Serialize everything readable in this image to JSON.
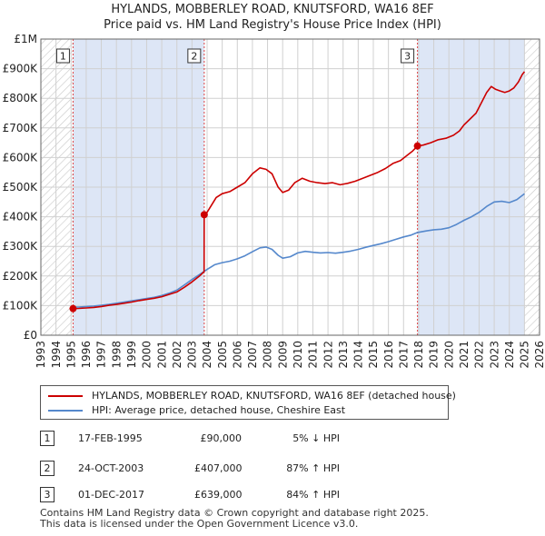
{
  "title": {
    "line1": "HYLANDS, MOBBERLEY ROAD, KNUTSFORD, WA16 8EF",
    "line2": "Price paid vs. HM Land Registry's House Price Index (HPI)"
  },
  "colors": {
    "property": "#cc0000",
    "hpi": "#5588cc",
    "shade": "#dde6f6",
    "grid": "#d0d0d0"
  },
  "legend": {
    "property_label": "HYLANDS, MOBBERLEY ROAD, KNUTSFORD, WA16 8EF (detached house)",
    "hpi_label": "HPI: Average price, detached house, Cheshire East"
  },
  "sales": [
    {
      "num": "1",
      "date": "17-FEB-1995",
      "price": "£90,000",
      "hpi": "5% ↓ HPI"
    },
    {
      "num": "2",
      "date": "24-OCT-2003",
      "price": "£407,000",
      "hpi": "87% ↑ HPI"
    },
    {
      "num": "3",
      "date": "01-DEC-2017",
      "price": "£639,000",
      "hpi": "84% ↑ HPI"
    }
  ],
  "footer": {
    "line1": "Contains HM Land Registry data © Crown copyright and database right 2025.",
    "line2": "This data is licensed under the Open Government Licence v3.0."
  },
  "chart_data": {
    "type": "line",
    "title": "HYLANDS, MOBBERLEY ROAD, KNUTSFORD, WA16 8EF",
    "subtitle": "Price paid vs. HM Land Registry's House Price Index (HPI)",
    "xlabel": "",
    "ylabel": "",
    "xlim": [
      1993,
      2026
    ],
    "ylim": [
      0,
      1000000
    ],
    "x_ticks": [
      1993,
      1994,
      1995,
      1996,
      1997,
      1998,
      1999,
      2000,
      2001,
      2002,
      2003,
      2004,
      2005,
      2006,
      2007,
      2008,
      2009,
      2010,
      2011,
      2012,
      2013,
      2014,
      2015,
      2016,
      2017,
      2018,
      2019,
      2020,
      2021,
      2022,
      2023,
      2024,
      2025,
      2026
    ],
    "y_ticks": [
      {
        "value": 0,
        "label": "£0"
      },
      {
        "value": 100000,
        "label": "£100K"
      },
      {
        "value": 200000,
        "label": "£200K"
      },
      {
        "value": 300000,
        "label": "£300K"
      },
      {
        "value": 400000,
        "label": "£400K"
      },
      {
        "value": 500000,
        "label": "£500K"
      },
      {
        "value": 600000,
        "label": "£600K"
      },
      {
        "value": 700000,
        "label": "£700K"
      },
      {
        "value": 800000,
        "label": "£800K"
      },
      {
        "value": 900000,
        "label": "£900K"
      },
      {
        "value": 1000000,
        "label": "£1M"
      }
    ],
    "grid": true,
    "shaded_regions": [
      [
        1995.13,
        2003.81
      ],
      [
        2017.92,
        2025.0
      ]
    ],
    "hatched_regions": [
      [
        1993,
        1995.13
      ],
      [
        2025.0,
        2026
      ]
    ],
    "series": [
      {
        "name": "HYLANDS, MOBBERLEY ROAD, KNUTSFORD, WA16 8EF (detached house)",
        "color": "#cc0000",
        "points": [
          [
            1995.13,
            90000
          ],
          [
            1995.5,
            90500
          ],
          [
            1996.0,
            92000
          ],
          [
            1996.5,
            94000
          ],
          [
            1997.0,
            97000
          ],
          [
            1997.5,
            101000
          ],
          [
            1998.0,
            104000
          ],
          [
            1998.5,
            108000
          ],
          [
            1999.0,
            112000
          ],
          [
            1999.5,
            117000
          ],
          [
            2000.0,
            121000
          ],
          [
            2000.5,
            125000
          ],
          [
            2001.0,
            130000
          ],
          [
            2001.5,
            138000
          ],
          [
            2002.0,
            146000
          ],
          [
            2002.5,
            162000
          ],
          [
            2003.0,
            180000
          ],
          [
            2003.5,
            200000
          ],
          [
            2003.8,
            215000
          ],
          [
            2003.81,
            407000
          ],
          [
            2004.0,
            415000
          ],
          [
            2004.3,
            440000
          ],
          [
            2004.6,
            465000
          ],
          [
            2005.0,
            478000
          ],
          [
            2005.5,
            485000
          ],
          [
            2006.0,
            500000
          ],
          [
            2006.5,
            515000
          ],
          [
            2007.0,
            545000
          ],
          [
            2007.5,
            565000
          ],
          [
            2007.9,
            560000
          ],
          [
            2008.3,
            545000
          ],
          [
            2008.7,
            500000
          ],
          [
            2009.0,
            482000
          ],
          [
            2009.4,
            490000
          ],
          [
            2009.8,
            515000
          ],
          [
            2010.3,
            530000
          ],
          [
            2010.8,
            520000
          ],
          [
            2011.3,
            515000
          ],
          [
            2011.8,
            512000
          ],
          [
            2012.3,
            515000
          ],
          [
            2012.8,
            508000
          ],
          [
            2013.3,
            513000
          ],
          [
            2013.8,
            520000
          ],
          [
            2014.3,
            530000
          ],
          [
            2014.8,
            540000
          ],
          [
            2015.3,
            550000
          ],
          [
            2015.8,
            563000
          ],
          [
            2016.3,
            580000
          ],
          [
            2016.8,
            590000
          ],
          [
            2017.3,
            610000
          ],
          [
            2017.6,
            622000
          ],
          [
            2017.92,
            639000
          ],
          [
            2018.3,
            642000
          ],
          [
            2018.8,
            650000
          ],
          [
            2019.3,
            660000
          ],
          [
            2019.8,
            665000
          ],
          [
            2020.3,
            675000
          ],
          [
            2020.7,
            690000
          ],
          [
            2021.0,
            710000
          ],
          [
            2021.4,
            730000
          ],
          [
            2021.8,
            750000
          ],
          [
            2022.2,
            790000
          ],
          [
            2022.5,
            820000
          ],
          [
            2022.8,
            840000
          ],
          [
            2023.1,
            830000
          ],
          [
            2023.4,
            825000
          ],
          [
            2023.7,
            820000
          ],
          [
            2024.0,
            825000
          ],
          [
            2024.3,
            835000
          ],
          [
            2024.6,
            855000
          ],
          [
            2024.85,
            880000
          ],
          [
            2025.0,
            890000
          ]
        ]
      },
      {
        "name": "HPI: Average price, detached house, Cheshire East",
        "color": "#5588cc",
        "points": [
          [
            1995.0,
            95000
          ],
          [
            1995.5,
            95000
          ],
          [
            1996.0,
            97000
          ],
          [
            1996.5,
            98500
          ],
          [
            1997.0,
            101000
          ],
          [
            1997.5,
            104000
          ],
          [
            1998.0,
            108000
          ],
          [
            1998.5,
            112000
          ],
          [
            1999.0,
            116000
          ],
          [
            1999.5,
            120000
          ],
          [
            2000.0,
            124000
          ],
          [
            2000.5,
            128000
          ],
          [
            2001.0,
            134000
          ],
          [
            2001.5,
            142000
          ],
          [
            2002.0,
            152000
          ],
          [
            2002.5,
            170000
          ],
          [
            2003.0,
            188000
          ],
          [
            2003.5,
            205000
          ],
          [
            2004.0,
            222000
          ],
          [
            2004.5,
            238000
          ],
          [
            2005.0,
            245000
          ],
          [
            2005.5,
            250000
          ],
          [
            2006.0,
            258000
          ],
          [
            2006.5,
            268000
          ],
          [
            2007.0,
            282000
          ],
          [
            2007.5,
            295000
          ],
          [
            2007.9,
            298000
          ],
          [
            2008.3,
            290000
          ],
          [
            2008.7,
            270000
          ],
          [
            2009.0,
            260000
          ],
          [
            2009.5,
            265000
          ],
          [
            2010.0,
            278000
          ],
          [
            2010.5,
            283000
          ],
          [
            2011.0,
            280000
          ],
          [
            2011.5,
            278000
          ],
          [
            2012.0,
            279000
          ],
          [
            2012.5,
            277000
          ],
          [
            2013.0,
            280000
          ],
          [
            2013.5,
            284000
          ],
          [
            2014.0,
            290000
          ],
          [
            2014.5,
            297000
          ],
          [
            2015.0,
            303000
          ],
          [
            2015.5,
            309000
          ],
          [
            2016.0,
            316000
          ],
          [
            2016.5,
            324000
          ],
          [
            2017.0,
            332000
          ],
          [
            2017.5,
            338000
          ],
          [
            2017.92,
            347000
          ],
          [
            2018.5,
            352000
          ],
          [
            2019.0,
            356000
          ],
          [
            2019.5,
            358000
          ],
          [
            2020.0,
            363000
          ],
          [
            2020.5,
            374000
          ],
          [
            2021.0,
            388000
          ],
          [
            2021.5,
            400000
          ],
          [
            2022.0,
            415000
          ],
          [
            2022.5,
            435000
          ],
          [
            2023.0,
            450000
          ],
          [
            2023.5,
            452000
          ],
          [
            2024.0,
            448000
          ],
          [
            2024.5,
            458000
          ],
          [
            2025.0,
            478000
          ]
        ]
      }
    ],
    "sale_points": [
      {
        "label": "1",
        "x": 1995.13,
        "y": 90000
      },
      {
        "label": "2",
        "x": 2003.81,
        "y": 407000
      },
      {
        "label": "3",
        "x": 2017.92,
        "y": 639000
      }
    ]
  }
}
